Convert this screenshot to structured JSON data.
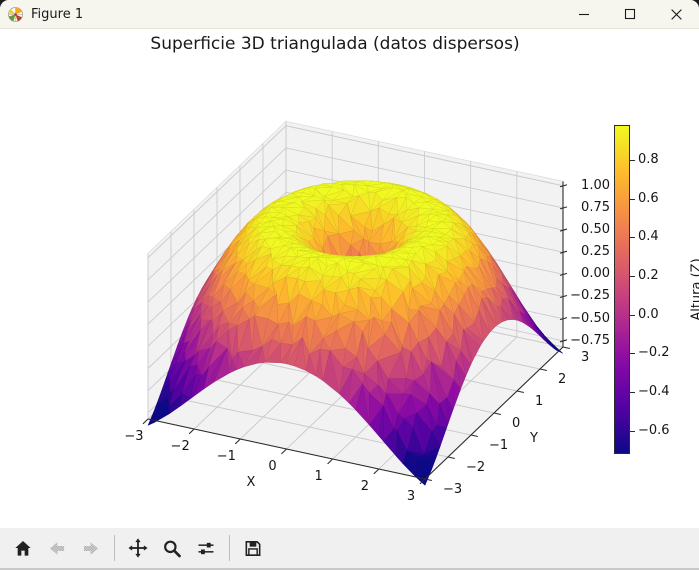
{
  "window": {
    "title": "Figure 1",
    "controls": {
      "minimize": "minimize",
      "maximize": "maximize",
      "close": "close"
    }
  },
  "toolbar": {
    "items": [
      {
        "id": "home",
        "icon": "home-icon",
        "enabled": true
      },
      {
        "id": "back",
        "icon": "arrow-left-icon",
        "enabled": false
      },
      {
        "id": "forward",
        "icon": "arrow-right-icon",
        "enabled": false
      },
      {
        "id": "sep1",
        "icon": "separator",
        "enabled": false
      },
      {
        "id": "pan",
        "icon": "pan-arrows-icon",
        "enabled": true
      },
      {
        "id": "zoom",
        "icon": "magnifier-icon",
        "enabled": true
      },
      {
        "id": "configure-subplots",
        "icon": "sliders-icon",
        "enabled": true
      },
      {
        "id": "sep2",
        "icon": "separator",
        "enabled": false
      },
      {
        "id": "save",
        "icon": "floppy-disk-icon",
        "enabled": true
      }
    ]
  },
  "chart_data": {
    "type": "trisurf-3d-surface",
    "title": "Superficie 3D triangulada (datos dispersos)",
    "xlabel": "X",
    "ylabel": "Y",
    "colorbar_label": "Altura (Z)",
    "surface_function": "z = sin(sqrt(x^2 + y^2)) sampled on scattered (x,y) points, Delaunay-triangulated",
    "colormap": "plasma",
    "view": "elev=30, azim=-60 (3D axes, z axis drawn on right)",
    "x_range": [
      -3,
      3
    ],
    "y_range": [
      -3,
      3
    ],
    "z_range": [
      -0.82,
      1.05
    ],
    "color_norm": [
      -0.72,
      0.98
    ],
    "x_ticks": [
      -3,
      -2,
      -1,
      0,
      1,
      2,
      3
    ],
    "x_tick_labels": [
      "−3",
      "−2",
      "−1",
      "0",
      "1",
      "2",
      "3"
    ],
    "y_ticks": [
      -3,
      -2,
      -1,
      0,
      1,
      2,
      3
    ],
    "y_tick_labels": [
      "−3",
      "−2",
      "−1",
      "0",
      "1",
      "2",
      "3"
    ],
    "z_ticks": [
      1.0,
      0.75,
      0.5,
      0.25,
      0.0,
      -0.25,
      -0.5,
      -0.75
    ],
    "z_tick_labels": [
      "1.00",
      "0.75",
      "0.50",
      "0.25",
      "0.00",
      "−0.25",
      "−0.50",
      "−0.75"
    ],
    "colorbar_ticks": [
      0.8,
      0.6,
      0.4,
      0.2,
      0.0,
      -0.2,
      -0.4,
      -0.6
    ],
    "colorbar_tick_labels": [
      "0.8",
      "0.6",
      "0.4",
      "0.2",
      "0.0",
      "−0.2",
      "−0.4",
      "−0.6"
    ],
    "grid": true,
    "pane_color": "#f2f2f3",
    "grid_color": "#cbcbce",
    "spine_color": "#2c2c2c",
    "accent_top_color": "#f0f921",
    "accent_bottom_color": "#0d0887"
  }
}
